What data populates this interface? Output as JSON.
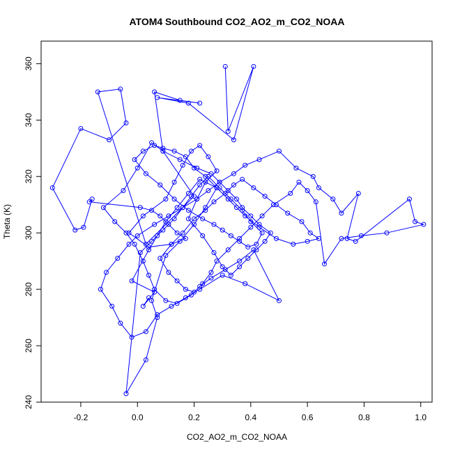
{
  "chart_data": {
    "type": "line",
    "title": "ATOM4 Southbound CO2_AO2_m_CO2_NOAA",
    "xlabel": "CO2_AO2_m_CO2_NOAA",
    "ylabel": "Theta (K)",
    "xlim": [
      -0.34,
      1.04
    ],
    "ylim": [
      240,
      368
    ],
    "xticks": [
      -0.2,
      0.0,
      0.2,
      0.4,
      0.6,
      0.8,
      1.0
    ],
    "yticks": [
      240,
      260,
      280,
      300,
      320,
      340,
      360
    ],
    "xtick_labels": [
      "-0.2",
      "0.0",
      "0.2",
      "0.4",
      "0.6",
      "0.8",
      "1.0"
    ],
    "ytick_labels": [
      "240",
      "260",
      "280",
      "300",
      "320",
      "340",
      "360"
    ],
    "grid": false,
    "marker": "open-circle",
    "color": "#0000ff",
    "series": [
      {
        "x": [
          0.31,
          0.32,
          0.41,
          0.34,
          0.18,
          0.07,
          0.22,
          0.15,
          0.06,
          0.09,
          0.2,
          0.03,
          -0.14,
          -0.06,
          -0.04,
          -0.1,
          -0.2,
          -0.3,
          -0.22,
          -0.19,
          -0.16,
          -0.17,
          0.01,
          0.05,
          0.08,
          0.11,
          0.14,
          0.17,
          0.12,
          0.04,
          -0.03,
          0.02,
          0.1,
          0.13,
          0.16,
          0.19,
          0.22,
          0.25,
          0.28,
          0.24,
          0.21,
          0.18,
          0.23,
          0.27,
          0.3,
          0.33,
          0.36,
          0.39,
          0.42,
          0.45,
          0.47,
          0.43,
          0.4,
          0.37,
          0.35,
          0.32,
          0.29,
          0.26,
          0.21,
          0.15,
          0.09,
          0.05,
          0.0,
          -0.05,
          -0.12,
          -0.08,
          -0.04,
          -0.01,
          0.02,
          0.04,
          0.06,
          0.1,
          0.14,
          0.19,
          0.22,
          0.26,
          0.31,
          0.36,
          0.41,
          0.5,
          0.38,
          0.3,
          0.22,
          0.17,
          0.12,
          0.07,
          0.03,
          -0.02,
          -0.06,
          -0.09,
          -0.13,
          -0.11,
          -0.07,
          -0.03,
          0.0,
          0.06,
          0.11,
          0.16,
          0.21,
          0.25,
          0.29,
          0.34,
          0.38,
          0.43,
          0.5,
          0.56,
          0.62,
          0.64,
          0.69,
          0.72,
          0.78,
          0.74,
          0.77,
          0.96,
          0.98,
          1.01,
          0.88,
          0.79,
          0.72,
          0.66,
          0.63,
          0.6,
          0.57,
          0.54,
          0.48,
          0.44,
          0.4,
          0.36,
          0.32,
          0.28,
          0.26,
          0.23,
          0.2,
          0.17,
          0.14,
          0.11,
          0.08,
          0.12,
          0.16,
          0.2,
          0.24,
          0.27,
          0.31,
          0.34,
          0.37,
          0.41,
          0.45,
          0.49,
          0.53,
          0.58,
          0.61,
          0.64,
          0.6,
          0.55,
          0.49,
          0.43,
          0.38,
          0.35,
          0.32,
          0.28,
          0.24,
          0.2,
          0.17,
          0.13,
          0.09,
          0.06,
          0.02,
          -0.01,
          0.03,
          0.08,
          0.13,
          0.18,
          0.23,
          0.27,
          0.3,
          0.33,
          0.36,
          0.39,
          0.42,
          0.44,
          0.4,
          0.37,
          0.33,
          0.29,
          0.25,
          0.22,
          0.19,
          0.16,
          0.13,
          0.09,
          0.05,
          0.01,
          -0.04,
          0.03,
          0.07,
          0.05,
          0.1,
          0.15,
          0.2,
          0.24,
          0.28,
          0.22,
          0.18,
          0.14,
          0.1,
          0.07,
          0.04,
          -0.02,
          0.06,
          0.02,
          0.04
        ],
        "y": [
          359,
          336,
          359,
          333,
          346,
          348,
          346,
          347,
          350,
          329,
          313,
          296,
          350,
          351,
          339,
          333,
          337,
          316,
          301,
          302,
          312,
          311,
          309,
          308,
          306,
          303,
          300,
          298,
          296,
          295,
          300,
          306,
          312,
          318,
          324,
          329,
          331,
          327,
          322,
          318,
          312,
          305,
          299,
          293,
          288,
          285,
          288,
          291,
          294,
          297,
          300,
          303,
          306,
          309,
          312,
          315,
          318,
          321,
          323,
          326,
          329,
          332,
          323,
          315,
          309,
          304,
          300,
          296,
          290,
          285,
          280,
          276,
          275,
          278,
          281,
          284,
          287,
          290,
          294,
          276,
          282,
          285,
          280,
          277,
          274,
          271,
          265,
          263,
          268,
          274,
          280,
          286,
          291,
          296,
          299,
          303,
          306,
          309,
          312,
          315,
          318,
          321,
          324,
          326,
          329,
          323,
          320,
          316,
          312,
          307,
          314,
          298,
          297,
          312,
          304,
          303,
          300,
          299,
          298,
          289,
          311,
          315,
          318,
          314,
          310,
          306,
          302,
          298,
          294,
          290,
          286,
          282,
          279,
          280,
          283,
          286,
          291,
          296,
          300,
          305,
          308,
          311,
          314,
          317,
          319,
          316,
          313,
          310,
          307,
          304,
          300,
          298,
          297,
          296,
          298,
          302,
          306,
          309,
          312,
          316,
          320,
          323,
          327,
          329,
          330,
          331,
          329,
          326,
          321,
          317,
          312,
          308,
          305,
          303,
          301,
          299,
          297,
          295,
          296,
          300,
          304,
          308,
          312,
          316,
          320,
          317,
          313,
          309,
          305,
          301,
          297,
          293,
          243,
          255,
          270,
          276,
          292,
          297,
          303,
          309,
          316,
          319,
          314,
          309,
          304,
          299,
          294,
          283,
          279,
          274,
          277
        ]
      }
    ]
  }
}
